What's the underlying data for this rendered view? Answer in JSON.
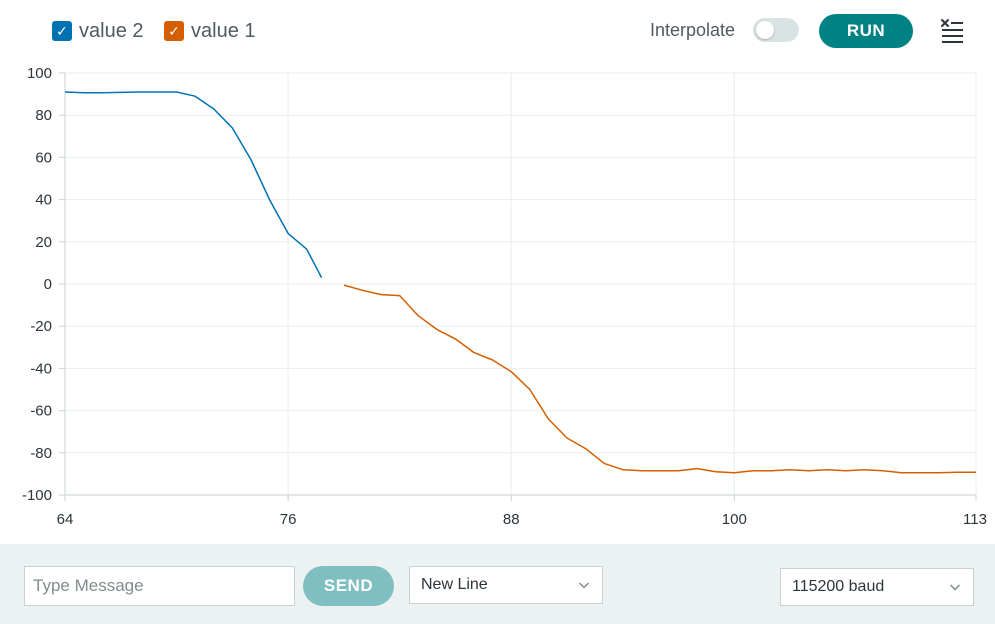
{
  "header": {
    "legend": [
      {
        "label": "value 2",
        "color": "#0072b2"
      },
      {
        "label": "value 1",
        "color": "#d55e00"
      }
    ],
    "interpolate_label": "Interpolate",
    "interpolate_on": false,
    "run_label": "RUN",
    "clear_icon": "clear-list-icon"
  },
  "chart_data": {
    "type": "line",
    "xlim": [
      64,
      113
    ],
    "ylim": [
      -100,
      100
    ],
    "x_ticks": [
      "64",
      "76",
      "88",
      "100",
      "113"
    ],
    "y_ticks": [
      "100",
      "80",
      "60",
      "40",
      "20",
      "0",
      "-20",
      "-40",
      "-60",
      "-80",
      "-100"
    ],
    "grid": true,
    "series": [
      {
        "name": "value 2",
        "color": "#0072b2",
        "x": [
          64,
          65,
          66,
          67,
          68,
          69,
          70,
          71,
          72,
          73,
          74,
          75,
          76,
          77,
          77.8
        ],
        "y": [
          91,
          90.6,
          90.6,
          90.8,
          91,
          91,
          91,
          89,
          83,
          74,
          59,
          40,
          24,
          16.5,
          3
        ]
      },
      {
        "name": "value 1",
        "color": "#d55e00",
        "x": [
          79,
          80,
          81,
          82,
          83,
          84,
          85,
          86,
          87,
          88,
          89,
          90,
          91,
          92,
          93,
          94,
          95,
          96,
          97,
          98,
          99,
          100,
          101,
          102,
          103,
          104,
          105,
          106,
          107,
          108,
          109,
          110,
          111,
          112,
          113
        ],
        "y": [
          -0.5,
          -3,
          -5,
          -5.5,
          -15,
          -21.5,
          -26,
          -32.5,
          -36,
          -41.5,
          -50,
          -64,
          -73,
          -78,
          -85,
          -88,
          -88.5,
          -88.5,
          -88.5,
          -87.5,
          -89,
          -89.5,
          -88.5,
          -88.5,
          -88,
          -88.5,
          -88,
          -88.5,
          -88,
          -88.5,
          -89.5,
          -89.5,
          -89.5,
          -89.2,
          -89.2
        ]
      }
    ]
  },
  "bottom": {
    "message_placeholder": "Type Message",
    "message_value": "",
    "send_label": "SEND",
    "line_ending": "New Line",
    "baud": "115200 baud"
  }
}
